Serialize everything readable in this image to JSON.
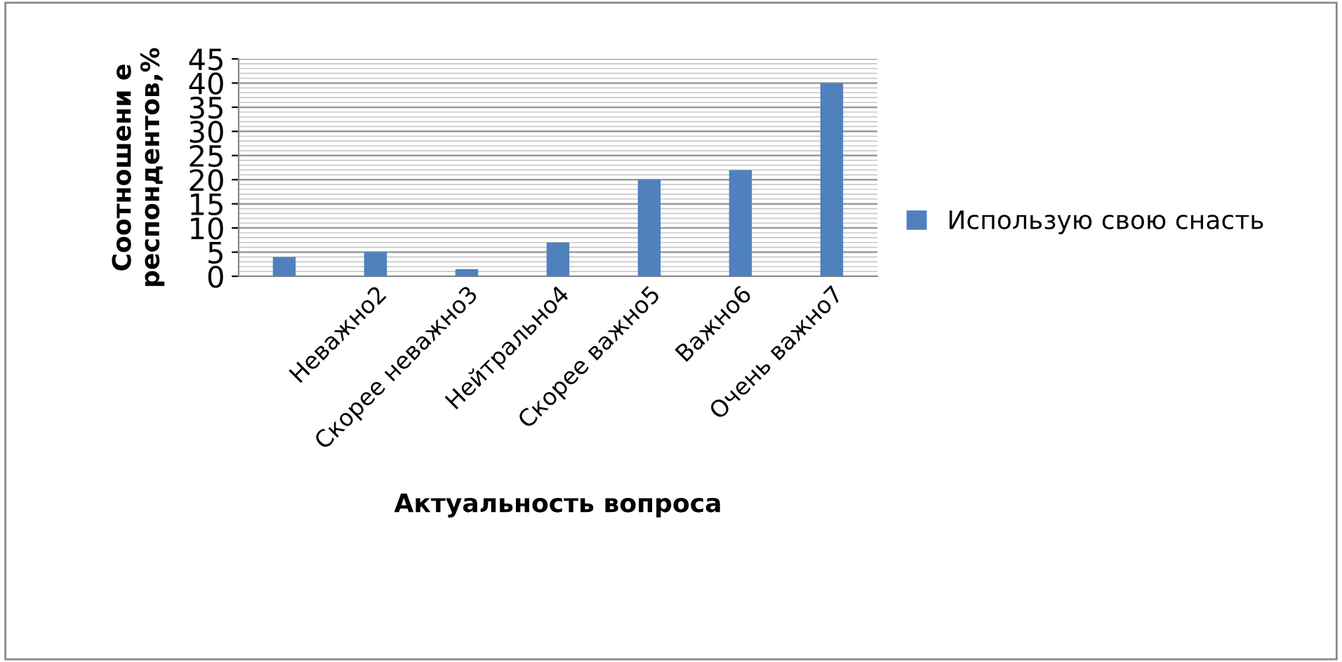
{
  "chart_data": {
    "type": "bar",
    "categories": [
      null,
      "Неважно2",
      "Скорее неважно3",
      "Нейтрально4",
      "Скорее важно5",
      "Важно6",
      "Очень важно7"
    ],
    "series": [
      {
        "name": "Использую свою снасть",
        "color": "#4f81bd",
        "values": [
          4,
          5,
          1.5,
          7,
          20,
          22,
          40
        ]
      }
    ],
    "ylim": [
      0,
      45
    ],
    "yticks": [
      0,
      5,
      10,
      15,
      20,
      25,
      30,
      35,
      40,
      45
    ],
    "xlabel": "Актуальность вопроса",
    "ylabel": "Соотношени е\nреспондентов,%",
    "grid": "y",
    "legend": "right"
  }
}
